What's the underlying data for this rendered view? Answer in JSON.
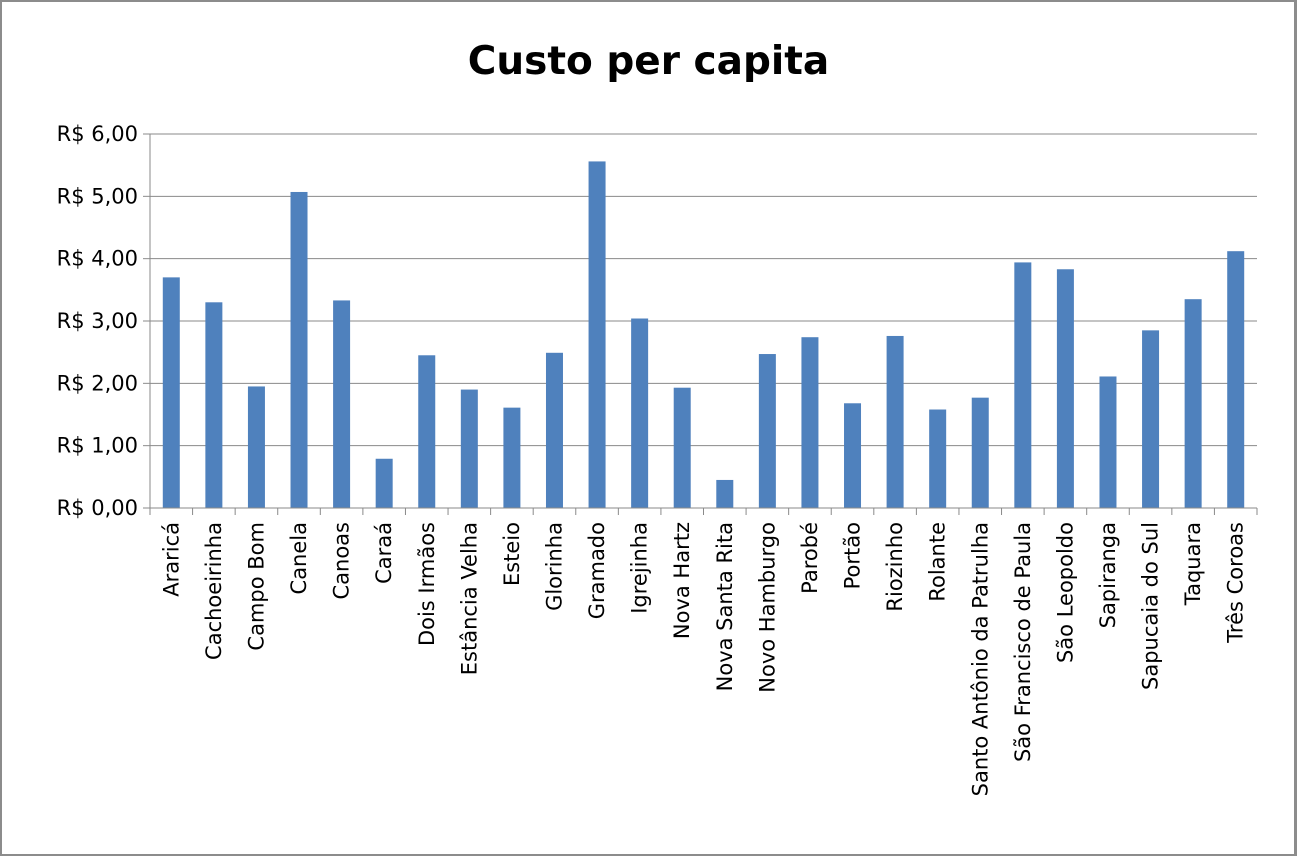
{
  "chart_data": {
    "type": "bar",
    "title": "Custo per capita",
    "xlabel": "",
    "ylabel": "",
    "ylim": [
      0,
      6
    ],
    "yticks": [
      0,
      1,
      2,
      3,
      4,
      5,
      6
    ],
    "ytick_labels": [
      "R$ 0,00",
      "R$ 1,00",
      "R$ 2,00",
      "R$ 3,00",
      "R$ 4,00",
      "R$ 5,00",
      "R$ 6,00"
    ],
    "grid": true,
    "legend": "none",
    "bar_color": "#4f81bd",
    "categories": [
      "Araricá",
      "Cachoeirinha",
      "Campo Bom",
      "Canela",
      "Canoas",
      "Caraá",
      "Dois Irmãos",
      "Estância Velha",
      "Esteio",
      "Glorinha",
      "Gramado",
      "Igrejinha",
      "Nova Hartz",
      "Nova Santa Rita",
      "Novo Hamburgo",
      "Parobé",
      "Portão",
      "Riozinho",
      "Rolante",
      "Santo Antônio da Patrulha",
      "São Francisco de Paula",
      "São Leopoldo",
      "Sapiranga",
      "Sapucaia do Sul",
      "Taquara",
      "Três Coroas"
    ],
    "values": [
      3.7,
      3.3,
      1.95,
      5.07,
      3.33,
      0.79,
      2.45,
      1.9,
      1.61,
      2.49,
      5.56,
      3.04,
      1.93,
      0.45,
      2.47,
      2.74,
      1.68,
      2.76,
      1.58,
      1.77,
      3.94,
      3.83,
      2.11,
      2.85,
      3.35,
      4.12
    ]
  }
}
